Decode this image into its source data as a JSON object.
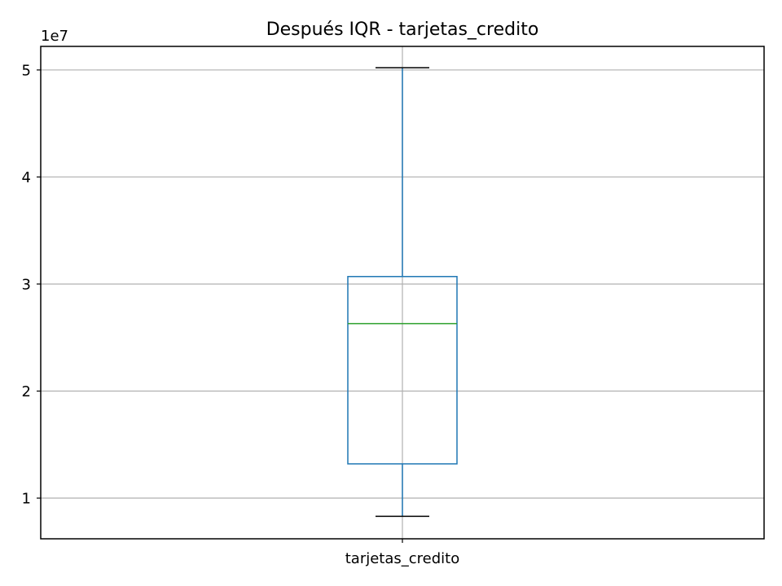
{
  "chart_data": {
    "type": "boxplot",
    "title": "Después IQR - tarjetas_credito",
    "xlabel": "",
    "ylabel": "",
    "y_offset_label": "1e7",
    "categories": [
      "tarjetas_credito"
    ],
    "boxes": [
      {
        "category": "tarjetas_credito",
        "whisker_low": 8300000,
        "q1": 13200000,
        "median": 26300000,
        "q3": 30700000,
        "whisker_high": 50200000
      }
    ],
    "ylim": [
      6200000,
      52200000
    ],
    "yticks": [
      10000000,
      20000000,
      30000000,
      40000000,
      50000000
    ],
    "ytick_labels": [
      "1",
      "2",
      "3",
      "4",
      "5"
    ],
    "grid": true,
    "colors": {
      "box": "#1f77b4",
      "median": "#2ca02c",
      "caps": "#000000",
      "grid": "#b0b0b0"
    }
  }
}
